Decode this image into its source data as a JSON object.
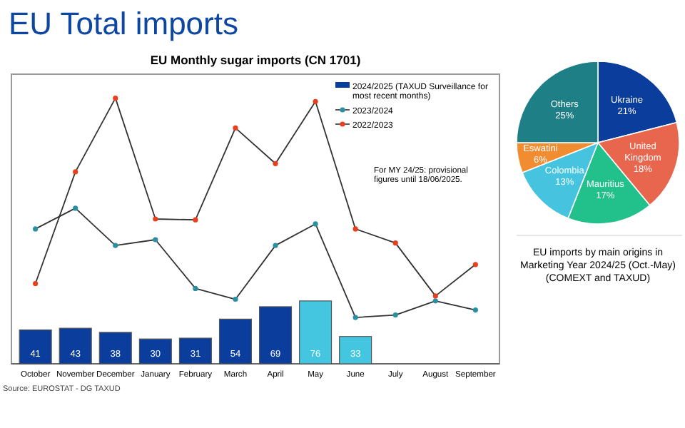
{
  "chart_data": [
    {
      "type": "bar",
      "title": "EU Total imports",
      "subtitle": "EU Monthly sugar imports (CN 1701)",
      "categories": [
        "October",
        "November",
        "December",
        "January",
        "February",
        "March",
        "April",
        "May",
        "June",
        "July",
        "August",
        "September"
      ],
      "series": [
        {
          "name": "2024/2025 (TAXUD Surveillance for most recent months)",
          "type": "bar",
          "color": "#0a3d9c",
          "colors": [
            "#0a3d9c",
            "#0a3d9c",
            "#0a3d9c",
            "#0a3d9c",
            "#0a3d9c",
            "#0a3d9c",
            "#0a3d9c",
            "#45c6e0",
            "#45c6e0",
            null,
            null,
            null
          ],
          "values": [
            41,
            43,
            38,
            30,
            31,
            54,
            69,
            76,
            33,
            null,
            null,
            null
          ],
          "value_labels": [
            "41",
            "43",
            "38",
            "30",
            "31",
            "54",
            "69",
            "76",
            "33",
            null,
            null,
            null
          ]
        },
        {
          "name": "2023/2024",
          "type": "line",
          "color": "#2a8fa0",
          "values": [
            163,
            188,
            143,
            150,
            91,
            78,
            143,
            169,
            56,
            59,
            76,
            65
          ]
        },
        {
          "name": "2022/2023",
          "type": "line",
          "color": "#e8401c",
          "values": [
            97,
            232,
            321,
            175,
            174,
            285,
            242,
            317,
            163,
            146,
            82,
            120
          ]
        }
      ],
      "ylim": [
        0,
        350
      ],
      "tick_labels": "x",
      "legend": "top right",
      "marker": "circle",
      "annotations": [
        "For MY 24/25: provisional figures until 18/06/2025.",
        "Source: EUROSTAT - DG TAXUD"
      ]
    },
    {
      "type": "pie",
      "categories": [
        "Ukraine",
        "United Kingdom",
        "Mauritius",
        "Colombia",
        "Eswatini",
        "Others"
      ],
      "values": [
        21,
        18,
        17,
        13,
        6,
        25
      ],
      "value_labels": [
        "21%",
        "18%",
        "17%",
        "13%",
        "6%",
        "25%"
      ],
      "colors": [
        "#0b3e9c",
        "#e8654e",
        "#22c08a",
        "#45c3df",
        "#f28c30",
        "#1e7f86"
      ],
      "annotations": [
        "EU imports by main origins in Marketing Year 2024/25 (Oct.-May) (COMEXT and TAXUD)"
      ]
    }
  ]
}
